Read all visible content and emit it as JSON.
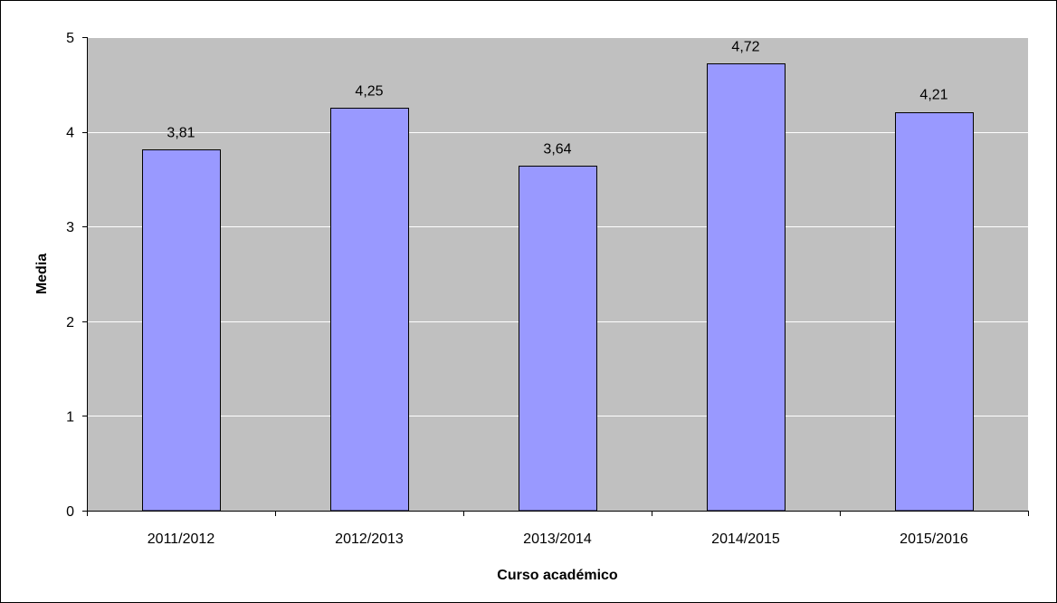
{
  "chart_data": {
    "type": "bar",
    "title": "",
    "xlabel": "Curso académico",
    "ylabel": "Media",
    "categories": [
      "2011/2012",
      "2012/2013",
      "2013/2014",
      "2014/2015",
      "2015/2016"
    ],
    "values": [
      3.81,
      4.25,
      3.64,
      4.72,
      4.21
    ],
    "data_labels": [
      "3,81",
      "4,25",
      "3,64",
      "4,72",
      "4,21"
    ],
    "ylim": [
      0,
      5
    ],
    "yticks": [
      0,
      1,
      2,
      3,
      4,
      5
    ],
    "ytick_labels": [
      "0",
      "1",
      "2",
      "3",
      "4",
      "5"
    ],
    "grid": true,
    "legend": "none",
    "colors": {
      "bar_fill": "#9999FF",
      "bar_stroke": "#000000",
      "plot_background": "#C0C0C0",
      "gridline": "#FFFFFF",
      "axis": "#000000"
    }
  }
}
